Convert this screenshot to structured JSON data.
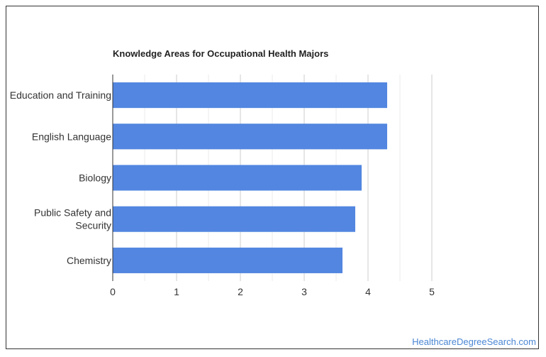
{
  "chart_data": {
    "type": "bar",
    "orientation": "horizontal",
    "title": "Knowledge Areas for Occupational Health Majors",
    "categories": [
      "Education and Training",
      "English Language",
      "Biology",
      "Public Safety and Security",
      "Chemistry"
    ],
    "category_lines": [
      [
        "Education and Training"
      ],
      [
        "English Language"
      ],
      [
        "Biology"
      ],
      [
        "Public Safety and",
        "Security"
      ],
      [
        "Chemistry"
      ]
    ],
    "values": [
      4.3,
      4.3,
      3.9,
      3.8,
      3.6
    ],
    "xlim": [
      0,
      5
    ],
    "xticks": [
      0,
      1,
      2,
      3,
      4,
      5
    ],
    "grid": true,
    "bar_color": "#5286e0"
  },
  "footer": {
    "source": "HealthcareDegreeSearch.com"
  }
}
